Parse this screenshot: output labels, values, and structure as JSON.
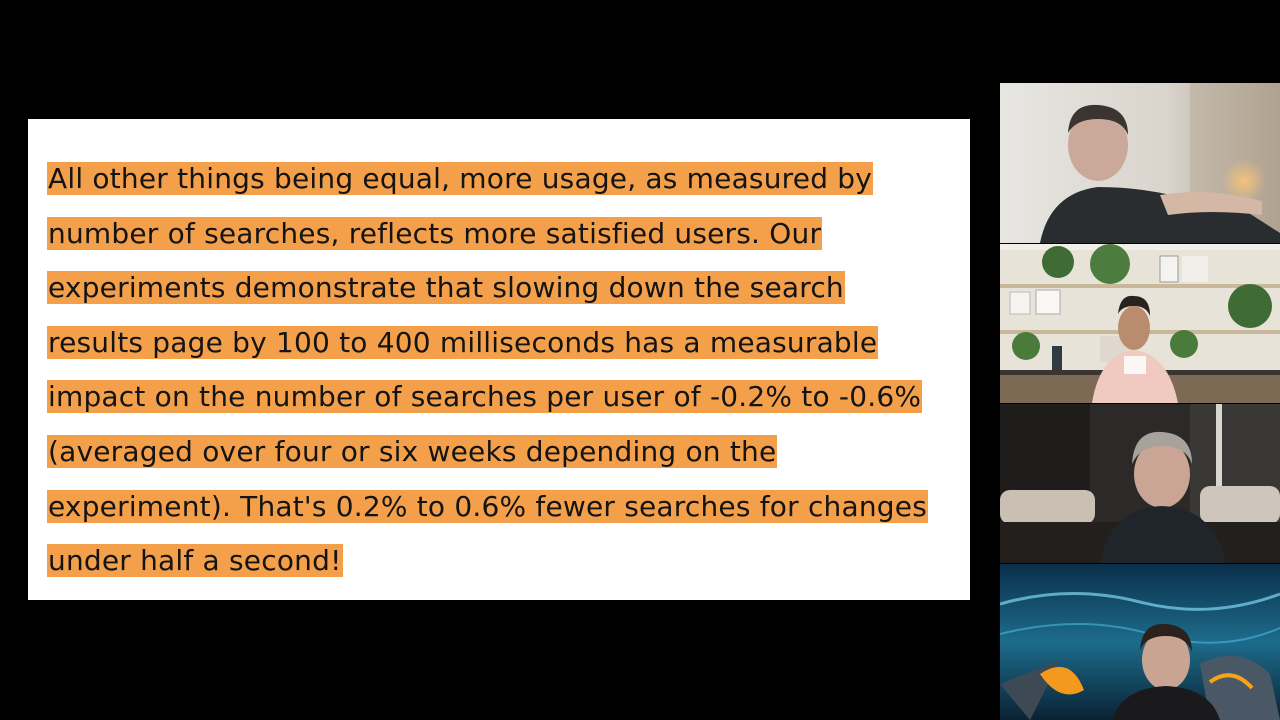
{
  "slide": {
    "quote_lines": [
      "All other things being equal, more usage, as measured by",
      "number of searches, reflects more satisfied users. Our",
      "experiments demonstrate that slowing down the search",
      "results page by 100 to 400 milliseconds has a measurable",
      "impact on the number of searches per user of -0.2% to -0.6%",
      "(averaged over four or six weeks depending on the",
      "experiment). That's 0.2% to 0.6% fewer searches for changes",
      "under half a second!"
    ],
    "highlight_color": "#f4a04b",
    "background_color": "#ffffff"
  },
  "participants": [
    {
      "tile": "participant-1",
      "scene": "bright-room"
    },
    {
      "tile": "participant-2",
      "scene": "shelves-with-plants"
    },
    {
      "tile": "participant-3",
      "scene": "dark-living-room"
    },
    {
      "tile": "participant-4",
      "scene": "sci-fi-virtual-background"
    }
  ]
}
